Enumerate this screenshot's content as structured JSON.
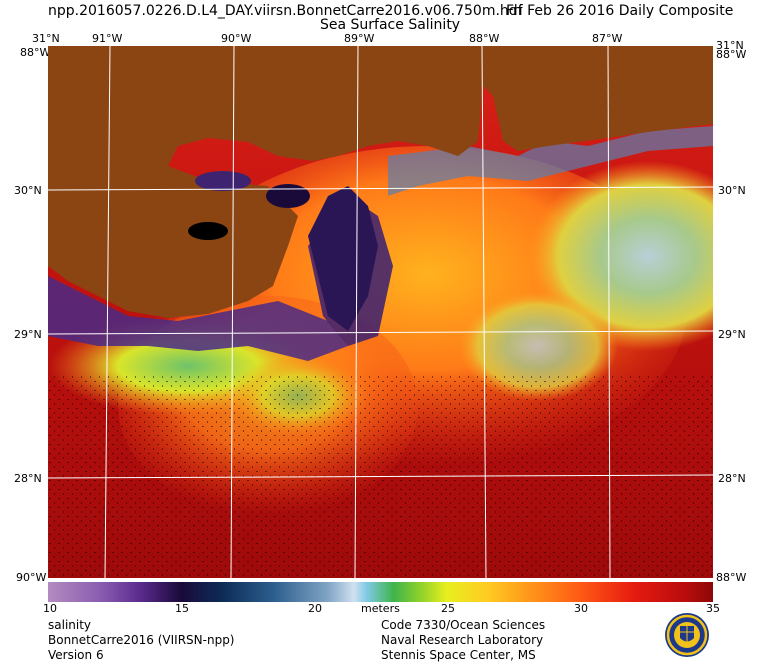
{
  "header": {
    "filename": "npp.2016057.0226.D.L4_DAY.viirsn.BonnetCarre2016.v06.750m.hdf",
    "date": "Fri Feb 26 2016 Daily Composite",
    "product": "Sea Surface Salinity"
  },
  "axes": {
    "top_lon": [
      "31°N",
      "91°W",
      "90°W",
      "89°W",
      "88°W",
      "87°W",
      "31°N"
    ],
    "corner_lon_top": [
      "88°W",
      "88°W"
    ],
    "lat_left": [
      "30°N",
      "29°N",
      "28°N"
    ],
    "lat_right": [
      "30°N",
      "29°N",
      "28°N"
    ],
    "bottom_corners": [
      "90°W",
      "88°W"
    ]
  },
  "colorbar": {
    "ticks": [
      "10",
      "15",
      "20",
      "25",
      "30",
      "35"
    ],
    "unit": "meters",
    "min": 10,
    "max": 35
  },
  "footer": {
    "left": [
      "salinity",
      "BonnetCarre2016 (VIIRSN-npp)",
      "Version 6"
    ],
    "right": [
      "Code 7330/Ocean Sciences",
      "Naval Research Laboratory",
      "Stennis Space Center, MS"
    ]
  },
  "colors": {
    "land": "#8b4513",
    "ocean_high": "#b30f0f",
    "gridline": "#ffffff"
  }
}
